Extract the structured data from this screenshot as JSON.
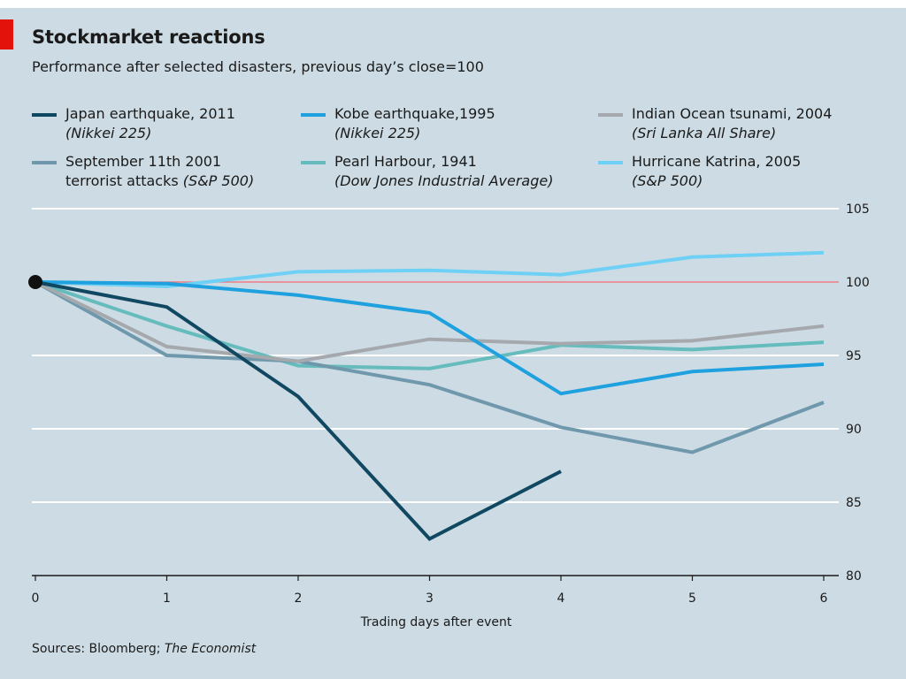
{
  "figure": {
    "title": "Stockmarket reactions",
    "subtitle": "Performance after selected disasters, previous day’s close=100",
    "source_prefix": "Sources: Bloomberg; ",
    "source_italic": "The Economist",
    "colors": {
      "background": "#cddce4",
      "accent_tag": "#e3120b",
      "reference_line": "#e0707b",
      "grid": "#ffffff"
    }
  },
  "legend": [
    {
      "line1": "Japan earthquake, 2011",
      "line2_plain": "",
      "line2_italic": "(Nikkei 225)",
      "color": "#114861"
    },
    {
      "line1": "Kobe earthquake,1995",
      "line2_plain": "",
      "line2_italic": "(Nikkei 225)",
      "color": "#1ea1de"
    },
    {
      "line1": "Indian Ocean tsunami, 2004",
      "line2_plain": "",
      "line2_italic": "(Sri Lanka All Share)",
      "color": "#a5a9ae"
    },
    {
      "line1": "September 11th 2001",
      "line2_plain": "terrorist attacks ",
      "line2_italic": "(S&P 500)",
      "color": "#6f98ad"
    },
    {
      "line1": "Pearl Harbour, 1941",
      "line2_plain": "",
      "line2_italic": "(Dow Jones Industrial Average)",
      "color": "#66bcbc"
    },
    {
      "line1": "Hurricane Katrina, 2005",
      "line2_plain": "",
      "line2_italic": "(S&P 500)",
      "color": "#6fd0f5"
    }
  ],
  "chart_data": {
    "type": "line",
    "title": "Stockmarket reactions",
    "subtitle": "Performance after selected disasters, previous day’s close=100",
    "xlabel": "Trading days after event",
    "ylabel": "",
    "x": [
      0,
      1,
      2,
      3,
      4,
      5,
      6
    ],
    "xlim": [
      0,
      6
    ],
    "ylim": [
      80,
      105
    ],
    "x_ticks": [
      "0",
      "1",
      "2",
      "3",
      "4",
      "5",
      "6"
    ],
    "y_ticks": [
      "80",
      "85",
      "90",
      "95",
      "100",
      "105"
    ],
    "y_tick_values": [
      80,
      85,
      90,
      95,
      100,
      105
    ],
    "y_axis_side": "right",
    "grid": true,
    "reference_line": 100,
    "legend_position": "top",
    "series": [
      {
        "name": "Japan earthquake, 2011 (Nikkei 225)",
        "color": "#114861",
        "width": 4,
        "values": [
          100,
          98.3,
          92.2,
          82.5,
          87.1,
          null,
          null
        ]
      },
      {
        "name": "Kobe earthquake,1995 (Nikkei 225)",
        "color": "#1ea1de",
        "width": 4,
        "values": [
          100,
          99.9,
          99.1,
          97.9,
          92.4,
          93.9,
          94.4
        ]
      },
      {
        "name": "Indian Ocean tsunami, 2004 (Sri Lanka All Share)",
        "color": "#a5a9ae",
        "width": 4,
        "values": [
          100,
          95.6,
          94.6,
          96.1,
          95.8,
          96.0,
          97.0
        ]
      },
      {
        "name": "September 11th 2001 terrorist attacks (S&P 500)",
        "color": "#6f98ad",
        "width": 4,
        "values": [
          100,
          95.0,
          94.6,
          93.0,
          90.1,
          88.4,
          91.8
        ]
      },
      {
        "name": "Pearl Harbour, 1941 (Dow Jones Industrial Average)",
        "color": "#66bcbc",
        "width": 4,
        "values": [
          100,
          97.0,
          94.3,
          94.1,
          95.7,
          95.4,
          95.9
        ]
      },
      {
        "name": "Hurricane Katrina, 2005 (S&P 500)",
        "color": "#6fd0f5",
        "width": 4,
        "values": [
          100,
          99.7,
          100.7,
          100.8,
          100.5,
          101.7,
          102.0
        ]
      }
    ]
  }
}
